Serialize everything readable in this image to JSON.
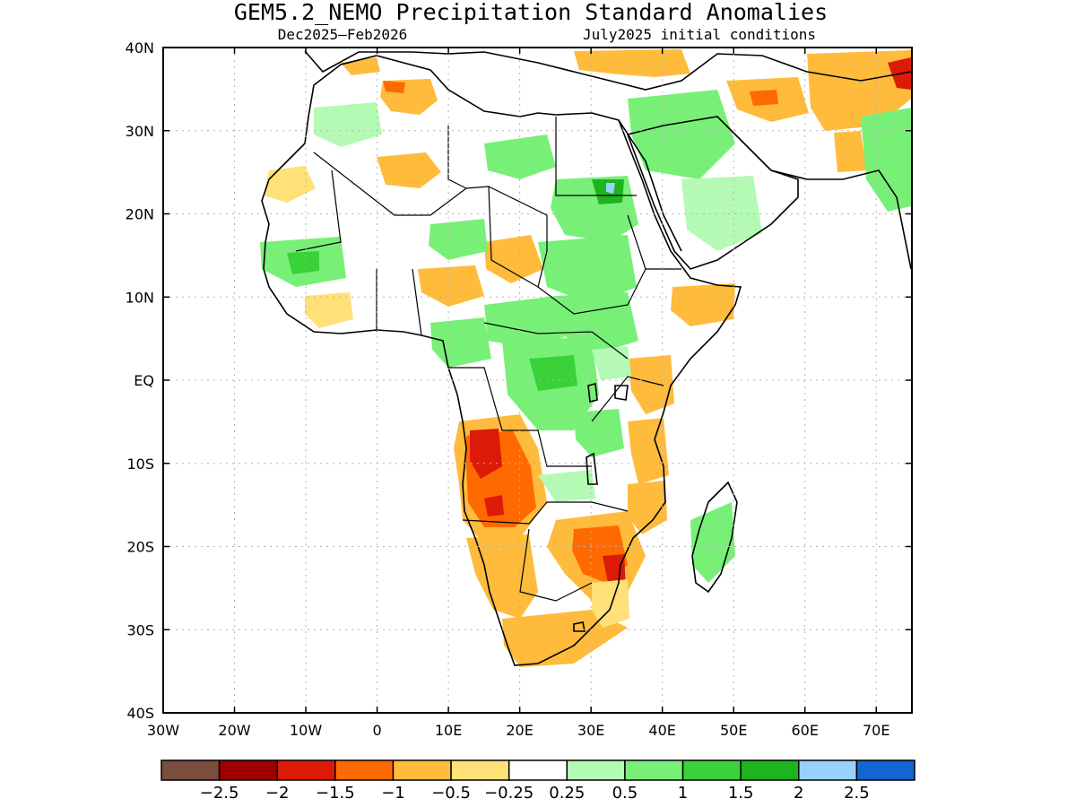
{
  "title": "GEM5.2_NEMO Precipitation Standard Anomalies",
  "subtitle_left": "Dec2025–Feb2026",
  "subtitle_right": "July2025 initial conditions",
  "axes": {
    "lon_ticks": [
      "30W",
      "20W",
      "10W",
      "0",
      "10E",
      "20E",
      "30E",
      "40E",
      "50E",
      "60E",
      "70E"
    ],
    "lat_ticks": [
      "40N",
      "30N",
      "20N",
      "10N",
      "EQ",
      "10S",
      "20S",
      "30S",
      "40S"
    ],
    "lon_range": [
      -30,
      75
    ],
    "lat_range": [
      -40,
      40
    ],
    "grid": "dotted"
  },
  "colorbar": {
    "colors": [
      "#7b4d3f",
      "#a00000",
      "#dc1a08",
      "#ff6a00",
      "#ffbb3c",
      "#ffe178",
      "#ffffff",
      "#b4fab4",
      "#78f078",
      "#3ad13a",
      "#1eb41e",
      "#96d2fa",
      "#1464d2"
    ],
    "labels": [
      "−2.5",
      "−2",
      "−1.5",
      "−1",
      "−0.5",
      "−0.25",
      "0.25",
      "0.5",
      "1",
      "1.5",
      "2",
      "2.5"
    ]
  }
}
